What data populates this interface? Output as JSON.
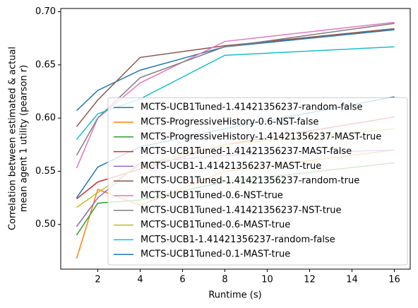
{
  "chart_data": {
    "type": "line",
    "xlabel": "Runtime (s)",
    "ylabel": [
      "Correlation between estimated & actual",
      "mean agent 1 utility (pearson r)"
    ],
    "x": [
      1,
      2,
      4,
      8,
      16
    ],
    "xlim": [
      0.25,
      16.75
    ],
    "xticks": [
      2,
      4,
      6,
      8,
      10,
      12,
      14,
      16
    ],
    "ylim": [
      0.458,
      0.703
    ],
    "yticks": [
      {
        "value": 0.5,
        "label": "0.50"
      },
      {
        "value": 0.55,
        "label": "0.55"
      },
      {
        "value": 0.6,
        "label": "0.60"
      },
      {
        "value": 0.65,
        "label": "0.65"
      },
      {
        "value": 0.7,
        "label": "0.70"
      }
    ],
    "legend": "lower right",
    "series": [
      {
        "name": "MCTS-UCB1Tuned-1.41421356237-random-false",
        "color": "#1f77b4",
        "values": [
          0.607,
          0.626,
          0.645,
          0.667,
          0.683
        ]
      },
      {
        "name": "MCTS-ProgressiveHistory-0.6-NST-false",
        "color": "#ff7f0e",
        "values": [
          0.468,
          0.533,
          0.518,
          0.55,
          0.57
        ]
      },
      {
        "name": "MCTS-ProgressiveHistory-1.41421356237-MAST-true",
        "color": "#2ca02c",
        "values": [
          0.49,
          0.52,
          0.523,
          0.54,
          0.558
        ]
      },
      {
        "name": "MCTS-UCB1Tuned-1.41421356237-MAST-false",
        "color": "#d62728",
        "values": [
          0.524,
          0.54,
          0.552,
          0.575,
          0.601
        ]
      },
      {
        "name": "MCTS-UCB1-1.41421356237-MAST-true",
        "color": "#9467bd",
        "values": [
          0.498,
          0.525,
          0.558,
          0.565,
          0.57
        ]
      },
      {
        "name": "MCTS-UCB1Tuned-1.41421356237-random-true",
        "color": "#8c564b",
        "values": [
          0.592,
          0.617,
          0.657,
          0.668,
          0.684
        ]
      },
      {
        "name": "MCTS-UCB1Tuned-0.6-NST-true",
        "color": "#e377c2",
        "values": [
          0.553,
          0.6,
          0.633,
          0.672,
          0.69
        ]
      },
      {
        "name": "MCTS-UCB1Tuned-1.41421356237-NST-true",
        "color": "#7f7f7f",
        "values": [
          0.565,
          0.6,
          0.638,
          0.667,
          0.689
        ]
      },
      {
        "name": "MCTS-UCB1Tuned-0.6-MAST-true",
        "color": "#bcbd22",
        "values": [
          0.516,
          0.53,
          0.556,
          0.575,
          0.59
        ]
      },
      {
        "name": "MCTS-UCB1-1.41421356237-random-false",
        "color": "#17becf",
        "values": [
          0.58,
          0.604,
          0.618,
          0.659,
          0.667
        ]
      },
      {
        "name": "MCTS-UCB1Tuned-0.1-MAST-true",
        "color": "#1f77b4",
        "values": [
          0.525,
          0.554,
          0.573,
          0.59,
          0.62
        ]
      }
    ]
  }
}
